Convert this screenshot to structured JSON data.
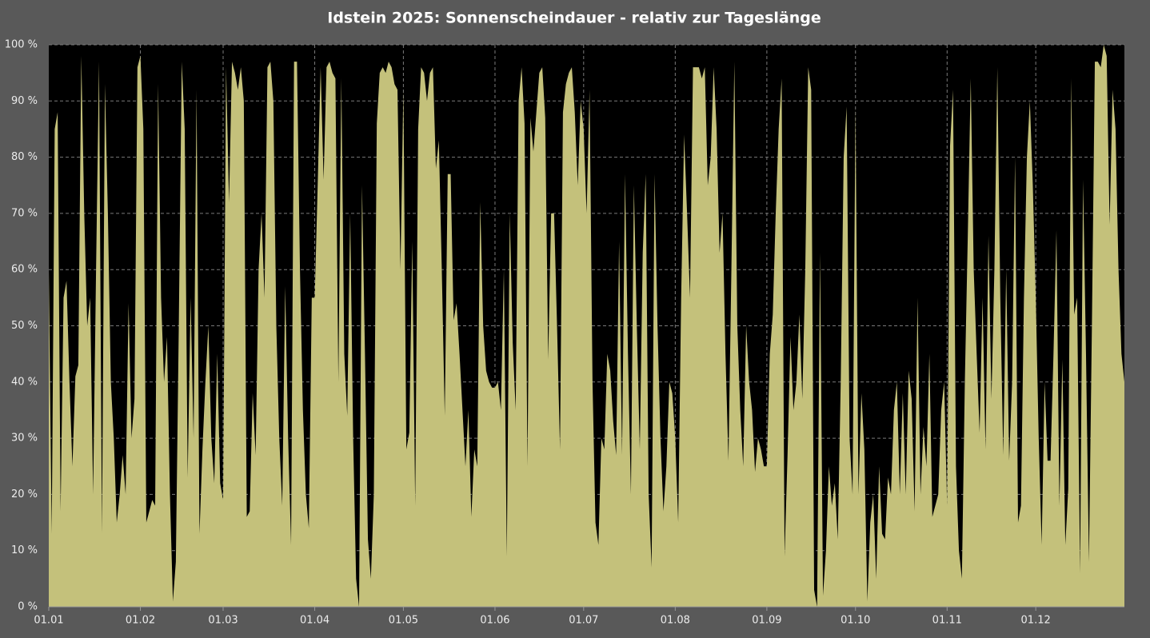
{
  "chart_data": {
    "type": "area",
    "title": "Idstein 2025:  Sonnenscheindauer - relativ zur Tageslänge",
    "color": "#c4c17b",
    "grid": true,
    "categories": [
      "01.01",
      null,
      null,
      null,
      null,
      null,
      null,
      null,
      null,
      null,
      null,
      null,
      null,
      null,
      null,
      null,
      null,
      null,
      null,
      null,
      null,
      null,
      null,
      null,
      null,
      null,
      null,
      null,
      null,
      null,
      null,
      "01.02",
      null,
      null,
      null,
      null,
      null,
      null,
      null,
      null,
      null,
      null,
      null,
      null,
      null,
      null,
      null,
      null,
      null,
      null,
      null,
      null,
      null,
      null,
      null,
      null,
      null,
      null,
      null,
      "01.03",
      null,
      null,
      null,
      null,
      null,
      null,
      null,
      null,
      null,
      null,
      null,
      null,
      null,
      null,
      null,
      null,
      null,
      null,
      null,
      null,
      null,
      null,
      null,
      null,
      null,
      null,
      null,
      null,
      null,
      null,
      "01.04",
      null,
      null,
      null,
      null,
      null,
      null,
      null,
      null,
      null,
      null,
      null,
      null,
      null,
      null,
      null,
      null,
      null,
      null,
      null,
      null,
      null,
      null,
      null,
      null,
      null,
      null,
      null,
      null,
      null,
      "01.05",
      null,
      null,
      null,
      null,
      null,
      null,
      null,
      null,
      null,
      null,
      null,
      null,
      null,
      null,
      null,
      null,
      null,
      null,
      null,
      null,
      null,
      null,
      null,
      null,
      null,
      null,
      null,
      null,
      null,
      null,
      "01.06",
      null,
      null,
      null,
      null,
      null,
      null,
      null,
      null,
      null,
      null,
      null,
      null,
      null,
      null,
      null,
      null,
      null,
      null,
      null,
      null,
      null,
      null,
      null,
      null,
      null,
      null,
      null,
      null,
      null,
      "01.07",
      null,
      null,
      null,
      null,
      null,
      null,
      null,
      null,
      null,
      null,
      null,
      null,
      null,
      null,
      null,
      null,
      null,
      null,
      null,
      null,
      null,
      null,
      null,
      null,
      null,
      null,
      null,
      null,
      null,
      null,
      "01.08",
      null,
      null,
      null,
      null,
      null,
      null,
      null,
      null,
      null,
      null,
      null,
      null,
      null,
      null,
      null,
      null,
      null,
      null,
      null,
      null,
      null,
      null,
      null,
      null,
      null,
      null,
      null,
      null,
      null,
      null,
      "01.09",
      null,
      null,
      null,
      null,
      null,
      null,
      null,
      null,
      null,
      null,
      null,
      null,
      null,
      null,
      null,
      null,
      null,
      null,
      null,
      null,
      null,
      null,
      null,
      null,
      null,
      null,
      null,
      null,
      null,
      "01.10",
      null,
      null,
      null,
      null,
      null,
      null,
      null,
      null,
      null,
      null,
      null,
      null,
      null,
      null,
      null,
      null,
      null,
      null,
      null,
      null,
      null,
      null,
      null,
      null,
      null,
      null,
      null,
      null,
      null,
      null,
      "01.11",
      null,
      null,
      null,
      null,
      null,
      null,
      null,
      null,
      null,
      null,
      null,
      null,
      null,
      null,
      null,
      null,
      null,
      null,
      null,
      null,
      null,
      null,
      null,
      null,
      null,
      null,
      null,
      null,
      null,
      "01.12",
      null,
      null,
      null,
      null,
      null,
      null,
      null,
      null,
      null,
      null,
      null,
      null,
      null,
      null,
      null,
      null,
      null,
      null,
      null,
      null,
      null,
      null,
      null,
      null,
      null,
      null,
      null,
      null,
      null,
      null
    ],
    "values": [
      60,
      13,
      85,
      88,
      17,
      55,
      58,
      40,
      25,
      41,
      43,
      98,
      70,
      50,
      55,
      20,
      60,
      97,
      13,
      93,
      70,
      40,
      30,
      15,
      20,
      27,
      20,
      54,
      30,
      37,
      96,
      98,
      85,
      15,
      17,
      19,
      18,
      93,
      55,
      40,
      48,
      20,
      1,
      8,
      50,
      97,
      85,
      23,
      55,
      30,
      92,
      13,
      28,
      40,
      50,
      30,
      22,
      45,
      22,
      19,
      96,
      72,
      97,
      95,
      92,
      96,
      90,
      16,
      17,
      38,
      27,
      60,
      70,
      55,
      96,
      97,
      90,
      50,
      30,
      18,
      57,
      30,
      11,
      97,
      97,
      60,
      35,
      20,
      14,
      55,
      55,
      75,
      96,
      76,
      96,
      97,
      95,
      94,
      40,
      94,
      45,
      34,
      70,
      30,
      5,
      0,
      75,
      45,
      12,
      5,
      20,
      86,
      95,
      96,
      95,
      97,
      96,
      93,
      92,
      60,
      92,
      28,
      31,
      65,
      18,
      85,
      96,
      95,
      90,
      95,
      96,
      78,
      83,
      60,
      34,
      77,
      77,
      51,
      54,
      45,
      35,
      25,
      35,
      16,
      28,
      25,
      72,
      50,
      42,
      40,
      39,
      39,
      40,
      35,
      60,
      9,
      70,
      47,
      35,
      90,
      96,
      86,
      25,
      87,
      81,
      88,
      95,
      96,
      87,
      44,
      70,
      70,
      50,
      28,
      88,
      93,
      95,
      96,
      88,
      75,
      90,
      85,
      70,
      92,
      40,
      15,
      11,
      30,
      28,
      45,
      42,
      33,
      27,
      65,
      27,
      77,
      45,
      20,
      75,
      50,
      28,
      63,
      77,
      20,
      7,
      77,
      50,
      30,
      17,
      25,
      40,
      38,
      30,
      15,
      55,
      84,
      70,
      55,
      96,
      96,
      96,
      94,
      96,
      75,
      80,
      96,
      85,
      63,
      70,
      45,
      26,
      60,
      97,
      50,
      35,
      25,
      50,
      40,
      35,
      24,
      30,
      28,
      25,
      25,
      45,
      52,
      70,
      85,
      94,
      9,
      27,
      48,
      35,
      40,
      52,
      37,
      60,
      96,
      92,
      3,
      0,
      63,
      2,
      10,
      25,
      18,
      22,
      12,
      40,
      80,
      89,
      30,
      20,
      89,
      20,
      38,
      28,
      1,
      15,
      20,
      5,
      25,
      13,
      12,
      23,
      20,
      35,
      40,
      20,
      38,
      20,
      42,
      37,
      17,
      55,
      20,
      32,
      25,
      45,
      16,
      18,
      20,
      35,
      40,
      18,
      82,
      92,
      25,
      10,
      5,
      40,
      66,
      94,
      60,
      45,
      31,
      55,
      28,
      66,
      37,
      60,
      96,
      55,
      27,
      60,
      26,
      40,
      80,
      15,
      18,
      55,
      80,
      90,
      75,
      55,
      30,
      11,
      40,
      26,
      26,
      45,
      67,
      18,
      44,
      11,
      21,
      94,
      52,
      55,
      6,
      76,
      45,
      8,
      50,
      97,
      97,
      96,
      100,
      98,
      68,
      92,
      85,
      60,
      45,
      40
    ],
    "ylim": [
      0,
      100
    ],
    "yticks": [
      {
        "value": 0,
        "label": "0 %"
      },
      {
        "value": 10,
        "label": "10 %"
      },
      {
        "value": 20,
        "label": "20 %"
      },
      {
        "value": 30,
        "label": "30 %"
      },
      {
        "value": 40,
        "label": "40 %"
      },
      {
        "value": 50,
        "label": "50 %"
      },
      {
        "value": 60,
        "label": "60 %"
      },
      {
        "value": 70,
        "label": "70 %"
      },
      {
        "value": 80,
        "label": "80 %"
      },
      {
        "value": 90,
        "label": "90 %"
      },
      {
        "value": 100,
        "label": "100 %"
      }
    ]
  }
}
